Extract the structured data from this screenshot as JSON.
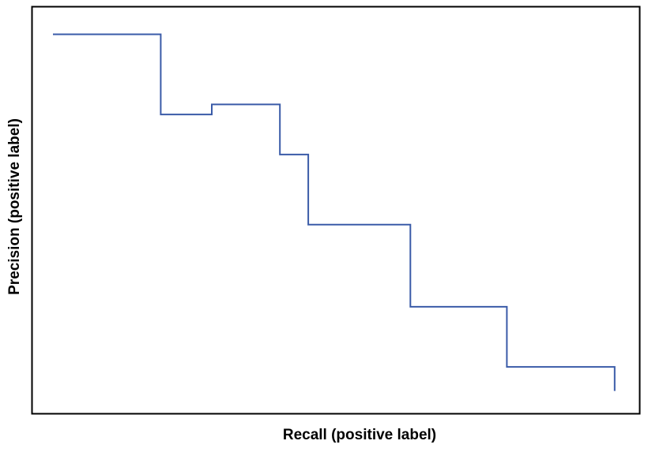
{
  "chart_data": {
    "type": "line",
    "step": true,
    "title": "",
    "xlabel": "Recall (positive label)",
    "ylabel": "Precision (positive label)",
    "x_ticks_shown": false,
    "y_ticks_shown": false,
    "grid": false,
    "legend": "none",
    "xlim": [
      0,
      1
    ],
    "ylim": [
      0,
      1
    ],
    "series": [
      {
        "color": "#3a5ba8",
        "points": [
          {
            "x": 0.0,
            "y": 0.94
          },
          {
            "x": 0.19,
            "y": 0.94
          },
          {
            "x": 0.19,
            "y": 0.74
          },
          {
            "x": 0.28,
            "y": 0.74
          },
          {
            "x": 0.28,
            "y": 0.765
          },
          {
            "x": 0.4,
            "y": 0.765
          },
          {
            "x": 0.4,
            "y": 0.64
          },
          {
            "x": 0.45,
            "y": 0.64
          },
          {
            "x": 0.45,
            "y": 0.465
          },
          {
            "x": 0.63,
            "y": 0.465
          },
          {
            "x": 0.63,
            "y": 0.26
          },
          {
            "x": 0.8,
            "y": 0.26
          },
          {
            "x": 0.8,
            "y": 0.11
          },
          {
            "x": 0.99,
            "y": 0.11
          },
          {
            "x": 0.99,
            "y": 0.05
          }
        ]
      }
    ]
  }
}
